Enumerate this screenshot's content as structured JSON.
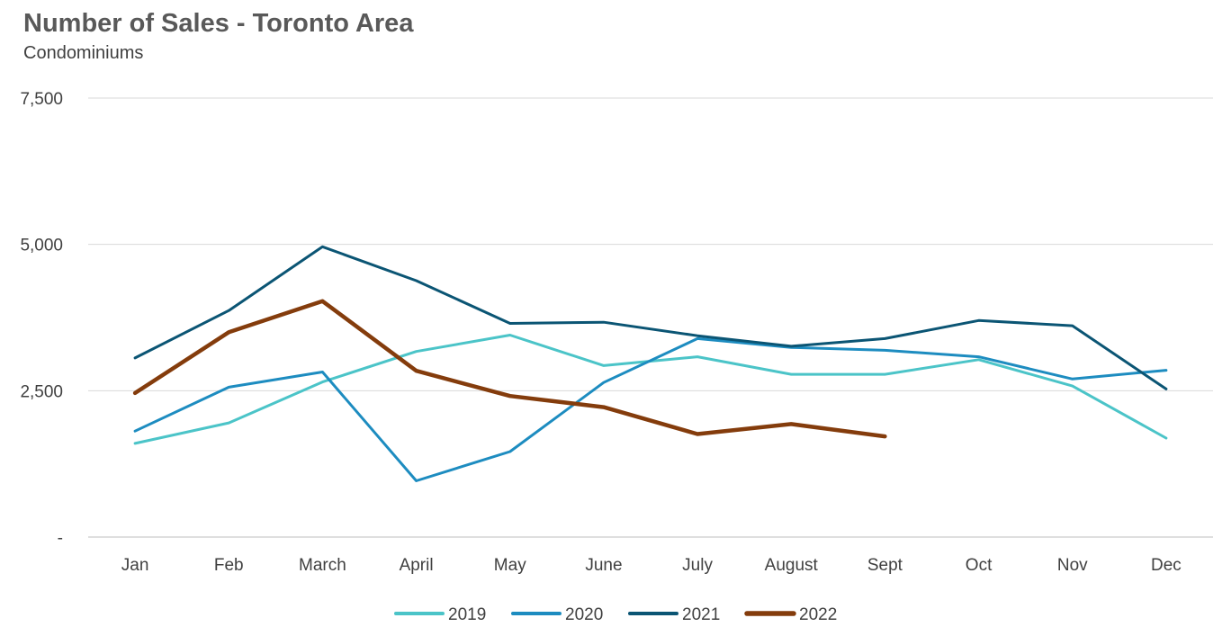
{
  "chart_data": {
    "type": "line",
    "title": "Number of Sales - Toronto Area",
    "subtitle": "Condominiums",
    "categories": [
      "Jan",
      "Feb",
      "March",
      "April",
      "May",
      "June",
      "July",
      "August",
      "Sept",
      "Oct",
      "Nov",
      "Dec"
    ],
    "y_tick_labels": [
      "-",
      "2,500",
      "5,000",
      "7,500"
    ],
    "y_ticks": [
      0,
      2500,
      5000,
      7500
    ],
    "ylim": [
      0,
      7500
    ],
    "grid": true,
    "legend_position": "bottom",
    "series": [
      {
        "name": "2019",
        "color": "#4BC4C8",
        "width": 3,
        "values": [
          1600,
          1950,
          2650,
          3170,
          3450,
          2930,
          3080,
          2780,
          2780,
          3030,
          2580,
          1690
        ]
      },
      {
        "name": "2020",
        "color": "#1D8CC0",
        "width": 3,
        "values": [
          1810,
          2560,
          2820,
          960,
          1460,
          2640,
          3390,
          3240,
          3190,
          3080,
          2700,
          2850
        ]
      },
      {
        "name": "2021",
        "color": "#0B5574",
        "width": 3,
        "values": [
          3060,
          3870,
          4960,
          4380,
          3650,
          3670,
          3440,
          3260,
          3390,
          3700,
          3610,
          2530
        ]
      },
      {
        "name": "2022",
        "color": "#843C0C",
        "width": 4.5,
        "values": [
          2460,
          3500,
          4030,
          2840,
          2410,
          2220,
          1760,
          1930,
          1720,
          null,
          null,
          null
        ]
      }
    ]
  }
}
